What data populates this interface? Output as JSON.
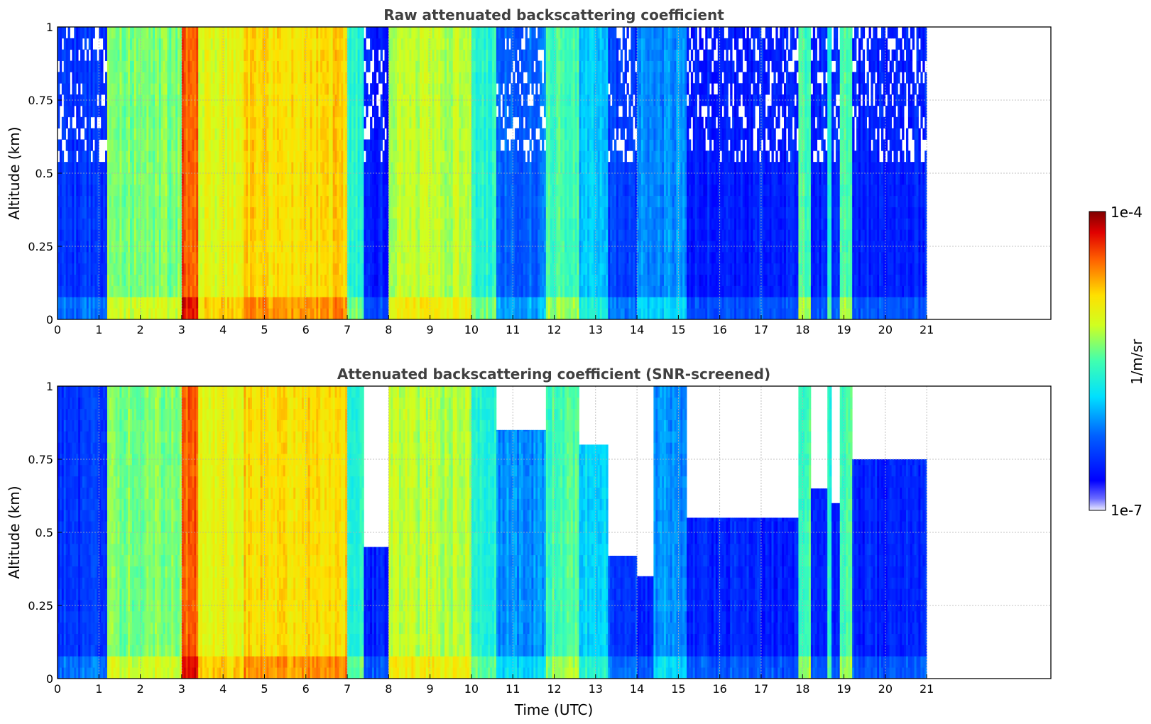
{
  "chart_data": [
    {
      "type": "heatmap",
      "title": "Raw attenuated backscattering coefficient",
      "xlabel": "",
      "ylabel": "Altitude (km)",
      "xlim": [
        0,
        24
      ],
      "ylim": [
        0,
        1
      ],
      "xticks": [
        "0",
        "1",
        "2",
        "3",
        "4",
        "5",
        "6",
        "7",
        "8",
        "9",
        "10",
        "11",
        "12",
        "13",
        "14",
        "15",
        "16",
        "17",
        "18",
        "19",
        "20",
        "21"
      ],
      "yticks": [
        "0",
        "0.25",
        "0.5",
        "0.75",
        "1"
      ],
      "data_extent_hours": [
        0,
        21
      ],
      "grid": true,
      "colorscale": "jet",
      "segments": [
        {
          "start": 0.0,
          "end": 1.2,
          "level": 0.18
        },
        {
          "start": 1.2,
          "end": 3.0,
          "level": 0.55
        },
        {
          "start": 3.0,
          "end": 3.4,
          "level": 0.85
        },
        {
          "start": 3.4,
          "end": 4.5,
          "level": 0.65
        },
        {
          "start": 4.5,
          "end": 7.0,
          "level": 0.72
        },
        {
          "start": 7.0,
          "end": 7.4,
          "level": 0.45
        },
        {
          "start": 7.4,
          "end": 8.0,
          "level": 0.15
        },
        {
          "start": 8.0,
          "end": 10.0,
          "level": 0.6
        },
        {
          "start": 10.0,
          "end": 10.6,
          "level": 0.45
        },
        {
          "start": 10.6,
          "end": 11.8,
          "level": 0.25
        },
        {
          "start": 11.8,
          "end": 12.6,
          "level": 0.5
        },
        {
          "start": 12.6,
          "end": 13.3,
          "level": 0.35
        },
        {
          "start": 13.3,
          "end": 14.0,
          "level": 0.2
        },
        {
          "start": 14.0,
          "end": 15.2,
          "level": 0.3
        },
        {
          "start": 15.2,
          "end": 17.9,
          "level": 0.15
        },
        {
          "start": 17.9,
          "end": 18.2,
          "level": 0.5
        },
        {
          "start": 18.2,
          "end": 18.6,
          "level": 0.15
        },
        {
          "start": 18.6,
          "end": 18.7,
          "level": 0.45
        },
        {
          "start": 18.7,
          "end": 18.9,
          "level": 0.15
        },
        {
          "start": 18.9,
          "end": 19.2,
          "level": 0.5
        },
        {
          "start": 19.2,
          "end": 21.0,
          "level": 0.15
        }
      ]
    },
    {
      "type": "heatmap",
      "title": "Attenuated backscattering coefficient (SNR-screened)",
      "xlabel": "Time (UTC)",
      "ylabel": "Altitude (km)",
      "xlim": [
        0,
        24
      ],
      "ylim": [
        0,
        1
      ],
      "xticks": [
        "0",
        "1",
        "2",
        "3",
        "4",
        "5",
        "6",
        "7",
        "8",
        "9",
        "10",
        "11",
        "12",
        "13",
        "14",
        "15",
        "16",
        "17",
        "18",
        "19",
        "20",
        "21"
      ],
      "yticks": [
        "0",
        "0.25",
        "0.5",
        "0.75",
        "1"
      ],
      "data_extent_hours": [
        0,
        21
      ],
      "grid": true,
      "colorscale": "jet",
      "segments": [
        {
          "start": 0.0,
          "end": 1.2,
          "level": 0.18,
          "top": 1.0
        },
        {
          "start": 1.2,
          "end": 3.0,
          "level": 0.55,
          "top": 1.0
        },
        {
          "start": 3.0,
          "end": 3.4,
          "level": 0.85,
          "top": 1.0
        },
        {
          "start": 3.4,
          "end": 4.5,
          "level": 0.65,
          "top": 1.0
        },
        {
          "start": 4.5,
          "end": 7.0,
          "level": 0.72,
          "top": 1.0
        },
        {
          "start": 7.0,
          "end": 7.4,
          "level": 0.45,
          "top": 1.0
        },
        {
          "start": 7.4,
          "end": 8.0,
          "level": 0.15,
          "top": 0.45
        },
        {
          "start": 8.0,
          "end": 10.0,
          "level": 0.6,
          "top": 1.0
        },
        {
          "start": 10.0,
          "end": 10.6,
          "level": 0.45,
          "top": 1.0
        },
        {
          "start": 10.6,
          "end": 11.8,
          "level": 0.3,
          "top": 0.85
        },
        {
          "start": 11.8,
          "end": 12.6,
          "level": 0.5,
          "top": 1.0
        },
        {
          "start": 12.6,
          "end": 13.3,
          "level": 0.38,
          "top": 0.8
        },
        {
          "start": 13.3,
          "end": 14.0,
          "level": 0.2,
          "top": 0.42
        },
        {
          "start": 14.0,
          "end": 14.4,
          "level": 0.15,
          "top": 0.35
        },
        {
          "start": 14.4,
          "end": 15.2,
          "level": 0.3,
          "top": 1.0
        },
        {
          "start": 15.2,
          "end": 17.9,
          "level": 0.15,
          "top": 0.55
        },
        {
          "start": 17.9,
          "end": 18.2,
          "level": 0.5,
          "top": 1.0
        },
        {
          "start": 18.2,
          "end": 18.6,
          "level": 0.15,
          "top": 0.65
        },
        {
          "start": 18.6,
          "end": 18.7,
          "level": 0.45,
          "top": 1.0
        },
        {
          "start": 18.7,
          "end": 18.9,
          "level": 0.15,
          "top": 0.6
        },
        {
          "start": 18.9,
          "end": 19.2,
          "level": 0.5,
          "top": 1.0
        },
        {
          "start": 19.2,
          "end": 21.0,
          "level": 0.15,
          "top": 0.75
        }
      ]
    }
  ],
  "colorbar": {
    "label": "1/m/sr",
    "min_label": "1e-7",
    "max_label": "1e-4",
    "scale": "log"
  }
}
